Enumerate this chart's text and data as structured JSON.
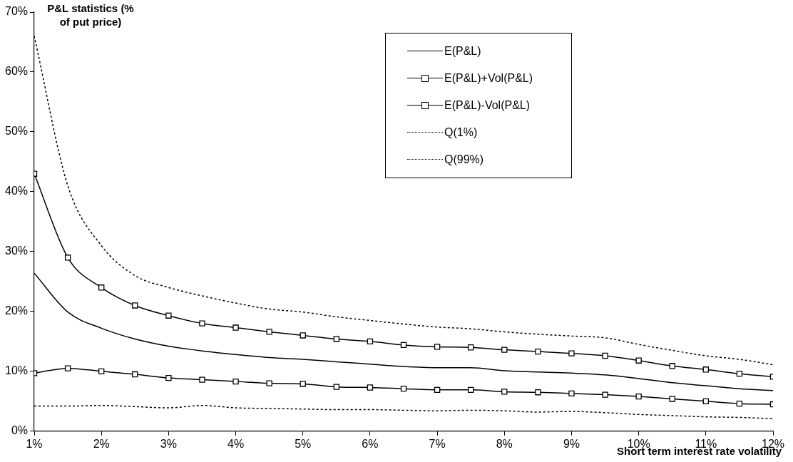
{
  "chart_data": {
    "type": "line",
    "xlabel": "Short term interest rate volatility",
    "ylabel": "P&L statistics (% of put price)",
    "x": [
      1,
      1.5,
      2,
      2.5,
      3,
      3.5,
      4,
      4.5,
      5,
      5.5,
      6,
      6.5,
      7,
      7.5,
      8,
      8.5,
      9,
      9.5,
      10,
      10.5,
      11,
      11.5,
      12
    ],
    "series": [
      {
        "name": "E(P&L)",
        "color": "#000000",
        "marker": "none",
        "line_style": "solid",
        "values": [
          26.4,
          19.9,
          17.2,
          15.4,
          14.2,
          13.4,
          12.8,
          12.3,
          12.0,
          11.6,
          11.2,
          10.8,
          10.6,
          10.6,
          10.1,
          9.9,
          9.7,
          9.4,
          8.8,
          8.1,
          7.6,
          7.1,
          6.8
        ]
      },
      {
        "name": "E(P&L)+Vol(P&L)",
        "color": "#000000",
        "marker": "square",
        "line_style": "solid",
        "values": [
          43,
          29,
          24,
          21,
          19.3,
          18,
          17.3,
          16.6,
          16.0,
          15.4,
          15,
          14.4,
          14.1,
          14.0,
          13.6,
          13.3,
          13,
          12.6,
          11.8,
          10.9,
          10.3,
          9.6,
          9.1
        ]
      },
      {
        "name": "E(P&L)-Vol(P&L)",
        "color": "#000000",
        "marker": "square",
        "line_style": "solid",
        "values": [
          9.7,
          10.5,
          10.0,
          9.5,
          8.9,
          8.6,
          8.3,
          8.0,
          7.9,
          7.4,
          7.3,
          7.1,
          6.9,
          6.9,
          6.6,
          6.5,
          6.3,
          6.1,
          5.8,
          5.4,
          5.0,
          4.6,
          4.5
        ]
      },
      {
        "name": "Q(1%)",
        "color": "#000000",
        "marker": "none",
        "line_style": "dotted",
        "values": [
          4.2,
          4.2,
          4.3,
          4.1,
          3.9,
          4.3,
          3.9,
          3.8,
          3.7,
          3.6,
          3.6,
          3.5,
          3.4,
          3.5,
          3.4,
          3.2,
          3.3,
          3.1,
          2.8,
          2.6,
          2.4,
          2.3,
          2.1
        ]
      },
      {
        "name": "Q(99%)",
        "color": "#000000",
        "marker": "none",
        "line_style": "dotted",
        "values": [
          66,
          41,
          31,
          26,
          24,
          22.6,
          21.4,
          20.4,
          19.9,
          19.1,
          18.5,
          17.9,
          17.4,
          17.1,
          16.6,
          16.2,
          15.9,
          15.6,
          14.5,
          13.5,
          12.6,
          12.0,
          11.1
        ]
      }
    ],
    "xlim": [
      1,
      12
    ],
    "xticks": [
      {
        "value": 1,
        "label": "1%"
      },
      {
        "value": 2,
        "label": "2%"
      },
      {
        "value": 3,
        "label": "3%"
      },
      {
        "value": 4,
        "label": "4%"
      },
      {
        "value": 5,
        "label": "5%"
      },
      {
        "value": 6,
        "label": "6%"
      },
      {
        "value": 7,
        "label": "7%"
      },
      {
        "value": 8,
        "label": "8%"
      },
      {
        "value": 9,
        "label": "9%"
      },
      {
        "value": 10,
        "label": "10%"
      },
      {
        "value": 11,
        "label": "11%"
      },
      {
        "value": 12,
        "label": "12%"
      }
    ],
    "ylim": [
      0,
      70
    ],
    "yticks": [
      {
        "value": 0,
        "label": "0%"
      },
      {
        "value": 10,
        "label": "10%"
      },
      {
        "value": 20,
        "label": "20%"
      },
      {
        "value": 30,
        "label": "30%"
      },
      {
        "value": 40,
        "label": "40%"
      },
      {
        "value": 50,
        "label": "50%"
      },
      {
        "value": 60,
        "label": "60%"
      },
      {
        "value": 70,
        "label": "70%"
      }
    ],
    "grid": false,
    "legend": "top right"
  }
}
